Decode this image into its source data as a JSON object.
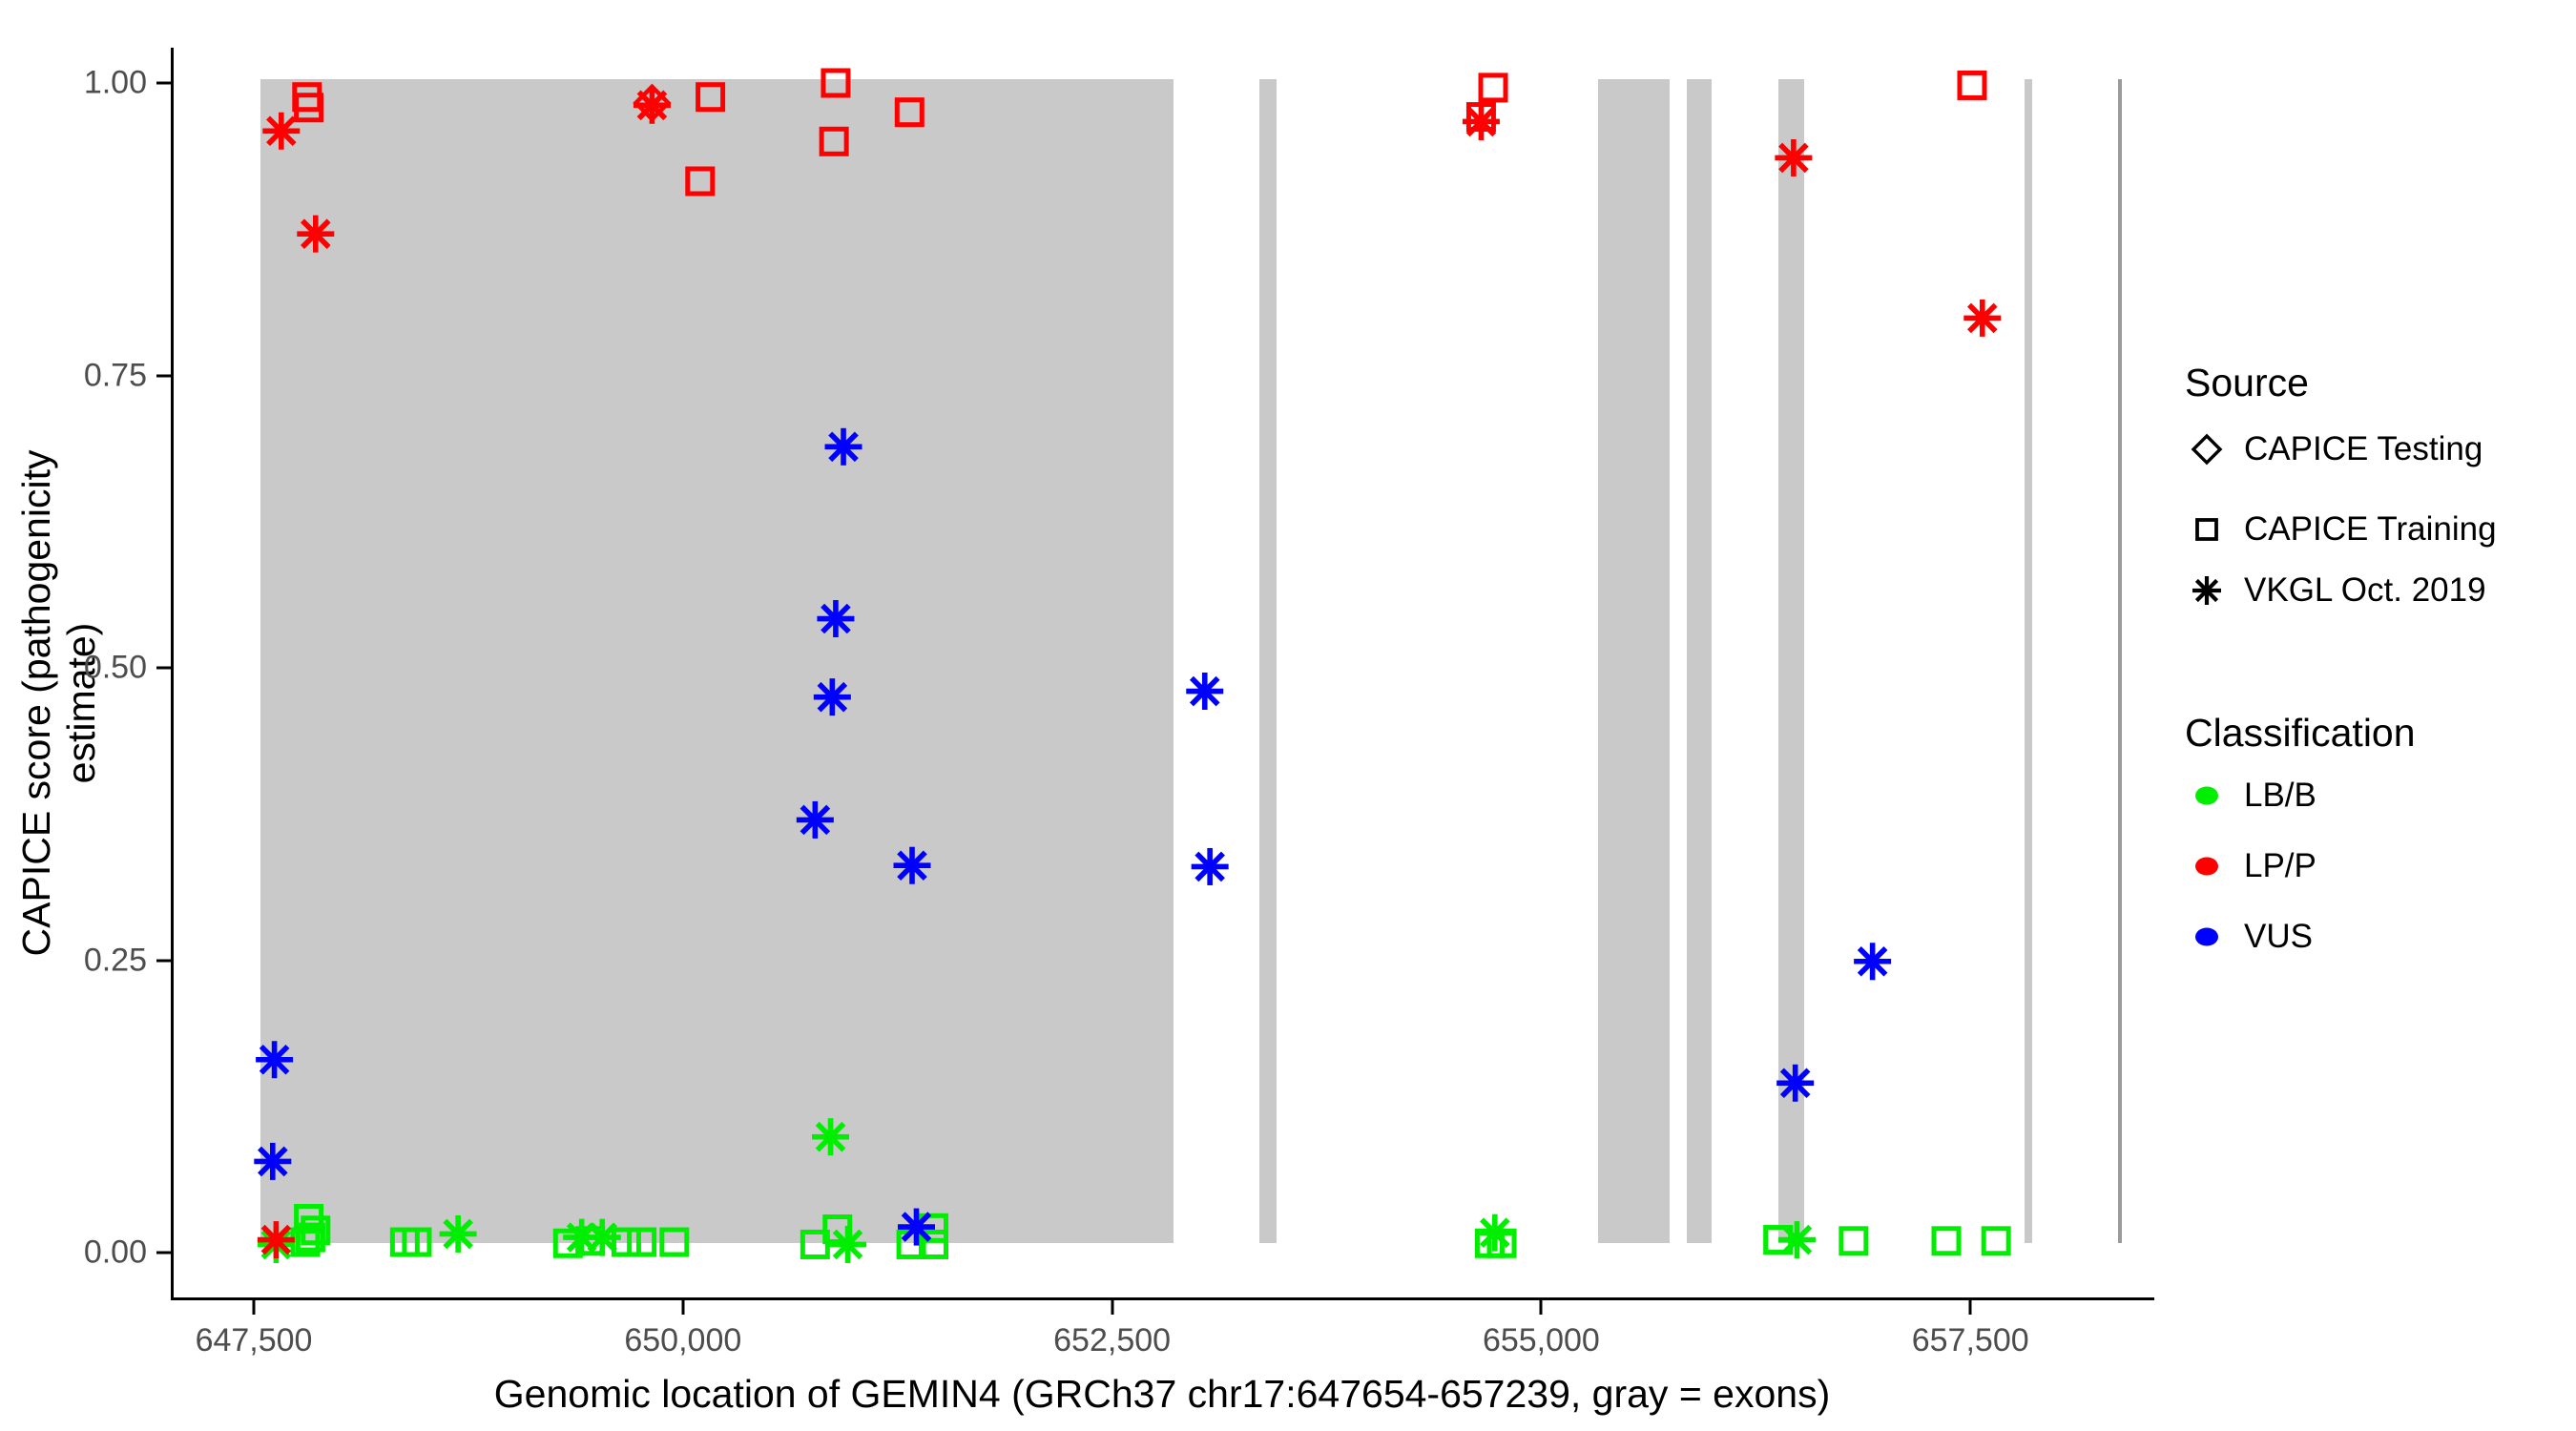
{
  "figure": {
    "x_axis": {
      "domain": [
        647033,
        658555
      ],
      "ticks": [
        {
          "value": 647500,
          "label": "647,500"
        },
        {
          "value": 650000,
          "label": "650,000"
        },
        {
          "value": 652500,
          "label": "652,500"
        },
        {
          "value": 655000,
          "label": "655,000"
        },
        {
          "value": 657500,
          "label": "657,500"
        }
      ]
    },
    "y_axis": {
      "domain": [
        -0.0383,
        1.0261
      ],
      "ticks": [
        {
          "value": 0.0,
          "label": "0.00"
        },
        {
          "value": 0.25,
          "label": "0.25"
        },
        {
          "value": 0.5,
          "label": "0.50"
        },
        {
          "value": 0.75,
          "label": "0.75"
        },
        {
          "value": 1.0,
          "label": "1.00"
        }
      ]
    },
    "colors": {
      "lb": "#00EE00",
      "lp": "#FF0000",
      "vus": "#0000FF",
      "exon": "#C9C9C9",
      "exon_dark": "#9B9B9B"
    },
    "legend": {
      "source": {
        "title": "Source",
        "items": [
          {
            "shape": "diamond",
            "label": "CAPICE Testing"
          },
          {
            "shape": "square",
            "label": "CAPICE Training"
          },
          {
            "shape": "asterisk",
            "label": "VKGL Oct. 2019"
          }
        ]
      },
      "classification": {
        "title": "Classification",
        "items": [
          {
            "color_key": "lb",
            "label": "LB/B"
          },
          {
            "color_key": "lp",
            "label": "LP/P"
          },
          {
            "color_key": "vus",
            "label": "VUS"
          }
        ]
      }
    }
  },
  "chart_data": {
    "type": "scatter",
    "xlabel": "Genomic location of GEMIN4 (GRCh37 chr17:647654-657239, gray = exons)",
    "ylabel": "CAPICE score (pathogenicity estimate)",
    "x_tick_values": [
      647500,
      650000,
      652500,
      655000,
      657500
    ],
    "y_tick_values": [
      0.0,
      0.25,
      0.5,
      0.75,
      1.0
    ],
    "grid": false,
    "legend_position": "right",
    "exons": [
      {
        "start": 647540,
        "end": 652860
      },
      {
        "start": 653360,
        "end": 653460
      },
      {
        "start": 655330,
        "end": 655750
      },
      {
        "start": 655850,
        "end": 655990
      },
      {
        "start": 656380,
        "end": 656530
      },
      {
        "start": 657815,
        "end": 657860
      },
      {
        "start": 658360,
        "end": 658380,
        "dark": true
      }
    ],
    "exon_y_extent": [
      0.008,
      1.003
    ],
    "series": [
      {
        "name": "LB/B",
        "color_key": "lb",
        "points": [
          {
            "x": 647820,
            "y": 0.029,
            "shape": "square"
          },
          {
            "x": 647860,
            "y": 0.019,
            "shape": "square"
          },
          {
            "x": 647830,
            "y": 0.013,
            "shape": "square"
          },
          {
            "x": 647800,
            "y": 0.009,
            "shape": "square"
          },
          {
            "x": 647630,
            "y": 0.007,
            "shape": "asterisk"
          },
          {
            "x": 648380,
            "y": 0.009,
            "shape": "square"
          },
          {
            "x": 648450,
            "y": 0.009,
            "shape": "square"
          },
          {
            "x": 648690,
            "y": 0.016,
            "shape": "asterisk"
          },
          {
            "x": 649330,
            "y": 0.008,
            "shape": "square"
          },
          {
            "x": 649410,
            "y": 0.013,
            "shape": "asterisk"
          },
          {
            "x": 649460,
            "y": 0.01,
            "shape": "square"
          },
          {
            "x": 649530,
            "y": 0.013,
            "shape": "asterisk"
          },
          {
            "x": 649670,
            "y": 0.009,
            "shape": "square"
          },
          {
            "x": 649760,
            "y": 0.009,
            "shape": "square"
          },
          {
            "x": 649950,
            "y": 0.009,
            "shape": "square"
          },
          {
            "x": 650770,
            "y": 0.007,
            "shape": "square"
          },
          {
            "x": 650860,
            "y": 0.099,
            "shape": "asterisk"
          },
          {
            "x": 650900,
            "y": 0.02,
            "shape": "square"
          },
          {
            "x": 650960,
            "y": 0.007,
            "shape": "asterisk"
          },
          {
            "x": 651330,
            "y": 0.007,
            "shape": "square"
          },
          {
            "x": 651460,
            "y": 0.021,
            "shape": "square"
          },
          {
            "x": 651460,
            "y": 0.007,
            "shape": "square"
          },
          {
            "x": 654700,
            "y": 0.008,
            "shape": "square"
          },
          {
            "x": 654770,
            "y": 0.008,
            "shape": "square"
          },
          {
            "x": 654730,
            "y": 0.017,
            "shape": "asterisk"
          },
          {
            "x": 656380,
            "y": 0.011,
            "shape": "square"
          },
          {
            "x": 656490,
            "y": 0.011,
            "shape": "asterisk"
          },
          {
            "x": 656820,
            "y": 0.01,
            "shape": "square"
          },
          {
            "x": 657360,
            "y": 0.01,
            "shape": "square"
          },
          {
            "x": 657650,
            "y": 0.01,
            "shape": "square"
          }
        ]
      },
      {
        "name": "LP/P",
        "color_key": "lp",
        "points": [
          {
            "x": 647660,
            "y": 0.959,
            "shape": "asterisk"
          },
          {
            "x": 647810,
            "y": 0.988,
            "shape": "square"
          },
          {
            "x": 647820,
            "y": 0.979,
            "shape": "square"
          },
          {
            "x": 647860,
            "y": 0.871,
            "shape": "asterisk"
          },
          {
            "x": 649820,
            "y": 0.983,
            "shape": "diamond"
          },
          {
            "x": 649820,
            "y": 0.981,
            "shape": "asterisk"
          },
          {
            "x": 650100,
            "y": 0.916,
            "shape": "square"
          },
          {
            "x": 650160,
            "y": 0.988,
            "shape": "square"
          },
          {
            "x": 650890,
            "y": 1.0,
            "shape": "square"
          },
          {
            "x": 650880,
            "y": 0.95,
            "shape": "square"
          },
          {
            "x": 651320,
            "y": 0.975,
            "shape": "square"
          },
          {
            "x": 654720,
            "y": 0.996,
            "shape": "square"
          },
          {
            "x": 654650,
            "y": 0.971,
            "shape": "square"
          },
          {
            "x": 654650,
            "y": 0.967,
            "shape": "asterisk"
          },
          {
            "x": 656470,
            "y": 0.936,
            "shape": "asterisk"
          },
          {
            "x": 657510,
            "y": 0.998,
            "shape": "square"
          },
          {
            "x": 657570,
            "y": 0.799,
            "shape": "asterisk"
          },
          {
            "x": 647630,
            "y": 0.011,
            "shape": "asterisk"
          }
        ]
      },
      {
        "name": "VUS",
        "color_key": "vus",
        "points": [
          {
            "x": 650935,
            "y": 0.689,
            "shape": "asterisk"
          },
          {
            "x": 650890,
            "y": 0.542,
            "shape": "asterisk"
          },
          {
            "x": 650870,
            "y": 0.475,
            "shape": "asterisk"
          },
          {
            "x": 650770,
            "y": 0.37,
            "shape": "asterisk"
          },
          {
            "x": 651335,
            "y": 0.331,
            "shape": "asterisk"
          },
          {
            "x": 653040,
            "y": 0.48,
            "shape": "asterisk"
          },
          {
            "x": 653070,
            "y": 0.33,
            "shape": "asterisk"
          },
          {
            "x": 647620,
            "y": 0.165,
            "shape": "asterisk"
          },
          {
            "x": 647610,
            "y": 0.078,
            "shape": "asterisk"
          },
          {
            "x": 656930,
            "y": 0.249,
            "shape": "asterisk"
          },
          {
            "x": 656480,
            "y": 0.145,
            "shape": "asterisk"
          },
          {
            "x": 651360,
            "y": 0.022,
            "shape": "asterisk"
          }
        ]
      }
    ]
  }
}
